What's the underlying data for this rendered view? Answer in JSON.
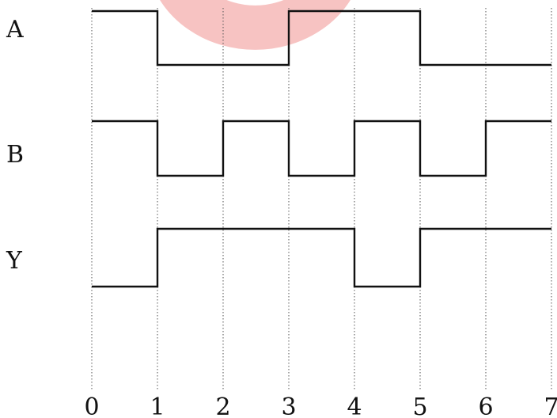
{
  "diagram": {
    "type": "digital-timing-diagram",
    "time_ticks": [
      "0",
      "1",
      "2",
      "3",
      "4",
      "5",
      "6",
      "7"
    ],
    "signals": [
      {
        "name": "A",
        "levels": [
          1,
          0,
          0,
          1,
          1,
          0,
          0
        ]
      },
      {
        "name": "B",
        "levels": [
          1,
          0,
          1,
          0,
          1,
          0,
          1
        ]
      },
      {
        "name": "Y",
        "levels": [
          0,
          1,
          1,
          1,
          0,
          1,
          1
        ]
      }
    ]
  },
  "colors": {
    "waveform": "#111111",
    "grid": "#555555",
    "watermark": "#ee7b78"
  }
}
